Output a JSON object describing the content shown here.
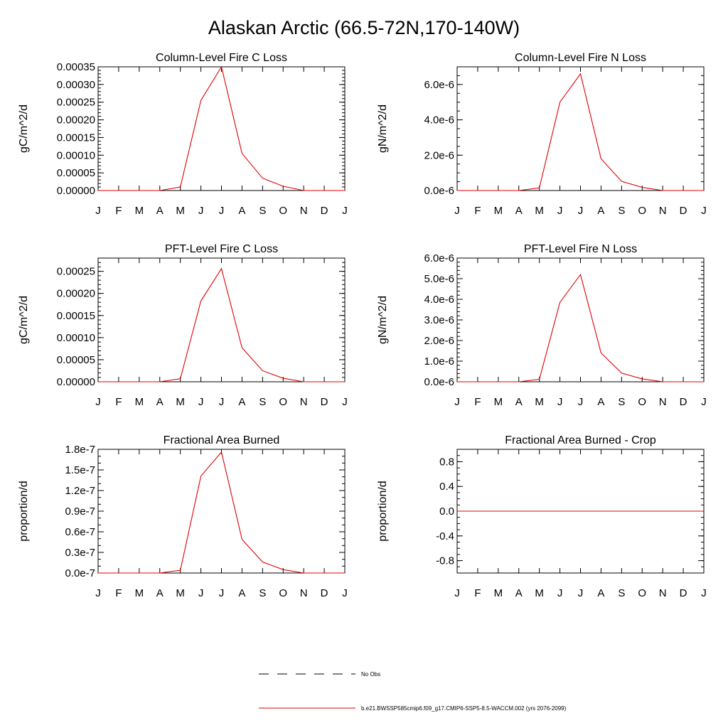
{
  "title": "Alaskan Arctic (66.5-72N,170-140W)",
  "months": [
    "J",
    "F",
    "M",
    "A",
    "M",
    "J",
    "J",
    "A",
    "S",
    "O",
    "N",
    "D",
    "J"
  ],
  "chart_data": [
    {
      "type": "line",
      "title": "Column-Level Fire C Loss",
      "ylabel": "gC/m^2/d",
      "ylim": [
        0,
        0.00035
      ],
      "yticks": [
        0,
        5e-05,
        0.0001,
        0.00015,
        0.0002,
        0.00025,
        0.0003,
        0.00035
      ],
      "ytick_labels": [
        "0.00000",
        "0.00005",
        "0.00010",
        "0.00015",
        "0.00020",
        "0.00025",
        "0.00030",
        "0.00035"
      ],
      "ytick_minor": 1e-05,
      "values": [
        0,
        0,
        0,
        0,
        1e-05,
        0.000255,
        0.00035,
        0.000105,
        3.5e-05,
        1.2e-05,
        0,
        0,
        0
      ]
    },
    {
      "type": "line",
      "title": "Column-Level Fire N Loss",
      "ylabel": "gN/m^2/d",
      "ylim": [
        0,
        7e-06
      ],
      "yticks": [
        0,
        2e-06,
        4e-06,
        6e-06
      ],
      "ytick_labels": [
        "0.0e-6",
        "2.0e-6",
        "4.0e-6",
        "6.0e-6"
      ],
      "ytick_minor": 5e-07,
      "values": [
        0,
        0,
        0,
        0,
        1.5e-07,
        5e-06,
        6.6e-06,
        1.8e-06,
        5.2e-07,
        1.8e-07,
        0,
        0,
        0
      ]
    },
    {
      "type": "line",
      "title": "PFT-Level Fire C Loss",
      "ylabel": "gC/m^2/d",
      "ylim": [
        0,
        0.00028
      ],
      "yticks": [
        0,
        5e-05,
        0.0001,
        0.00015,
        0.0002,
        0.00025
      ],
      "ytick_labels": [
        "0.00000",
        "0.00005",
        "0.00010",
        "0.00015",
        "0.00020",
        "0.00025"
      ],
      "ytick_minor": 1e-05,
      "values": [
        0,
        0,
        0,
        0,
        7e-06,
        0.000183,
        0.000256,
        7.7e-05,
        2.5e-05,
        8e-06,
        0,
        0,
        0
      ]
    },
    {
      "type": "line",
      "title": "PFT-Level Fire N Loss",
      "ylabel": "gN/m^2/d",
      "ylim": [
        0,
        6e-06
      ],
      "yticks": [
        0,
        1e-06,
        2e-06,
        3e-06,
        4e-06,
        5e-06,
        6e-06
      ],
      "ytick_labels": [
        "0.0e-6",
        "1.0e-6",
        "2.0e-6",
        "3.0e-6",
        "4.0e-6",
        "5.0e-6",
        "6.0e-6"
      ],
      "ytick_minor": 2e-07,
      "values": [
        0,
        0,
        0,
        0,
        1.2e-07,
        3.85e-06,
        5.2e-06,
        1.4e-06,
        4.2e-07,
        1.4e-07,
        0,
        0,
        0
      ]
    },
    {
      "type": "line",
      "title": "Fractional Area Burned",
      "ylabel": "proportion/d",
      "ylim": [
        0,
        1.8e-07
      ],
      "yticks": [
        0,
        3e-08,
        6e-08,
        9e-08,
        1.2e-07,
        1.5e-07,
        1.8e-07
      ],
      "ytick_labels": [
        "0.0e-7",
        "0.3e-7",
        "0.6e-7",
        "0.9e-7",
        "1.2e-7",
        "1.5e-7",
        "1.8e-7"
      ],
      "ytick_minor": 1e-08,
      "values": [
        0,
        0,
        0,
        0,
        4e-09,
        1.41e-07,
        1.76e-07,
        4.9e-08,
        1.6e-08,
        5e-09,
        0,
        0,
        0
      ]
    },
    {
      "type": "line",
      "title": "Fractional Area Burned - Crop",
      "ylabel": "proportion/d",
      "ylim": [
        -1.0,
        1.0
      ],
      "yticks": [
        -0.8,
        -0.4,
        0.0,
        0.4,
        0.8
      ],
      "ytick_labels": [
        "-0.8",
        "-0.4",
        "0.0",
        "0.4",
        "0.8"
      ],
      "ytick_minor": 0.1,
      "values": [
        0,
        0,
        0,
        0,
        0,
        0,
        0,
        0,
        0,
        0,
        0,
        0,
        0
      ]
    }
  ],
  "legend": {
    "obs_label": "No Obs",
    "model_label": "b.e21.BWSSP585cmip6.f09_g17.CMIP6-SSP5-8.5-WACCM.002 (yrs 2076-2099)"
  },
  "colors": {
    "series": "#e00000",
    "axes": "#000000"
  }
}
